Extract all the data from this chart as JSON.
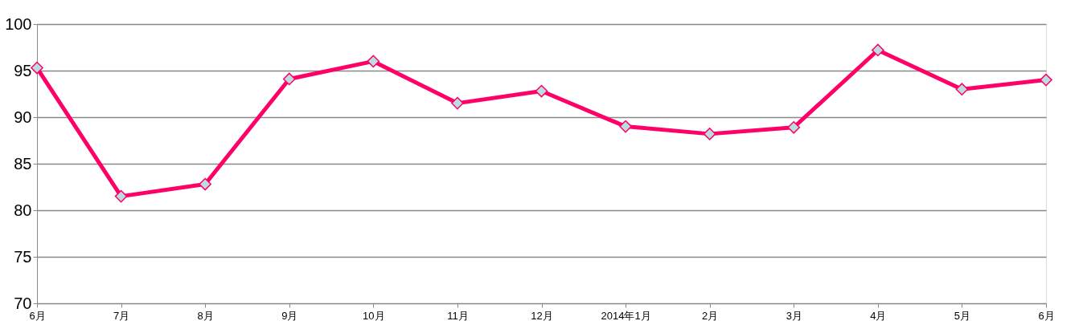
{
  "chart_data": {
    "type": "line",
    "categories": [
      "6月",
      "7月",
      "8月",
      "9月",
      "10月",
      "11月",
      "12月",
      "2014年1月",
      "2月",
      "3月",
      "4月",
      "5月",
      "6月"
    ],
    "series": [
      {
        "color": "#ff0066",
        "values": [
          95.3,
          81.5,
          82.8,
          94.1,
          96.0,
          91.5,
          92.8,
          89.0,
          88.2,
          88.9,
          97.2,
          93.0,
          94.0
        ]
      }
    ],
    "ylim": [
      70,
      100
    ],
    "yticks": [
      70,
      75,
      80,
      85,
      90,
      95,
      100
    ],
    "grid": "y",
    "marker": "diamond",
    "line_style": "solid",
    "legend": false
  }
}
